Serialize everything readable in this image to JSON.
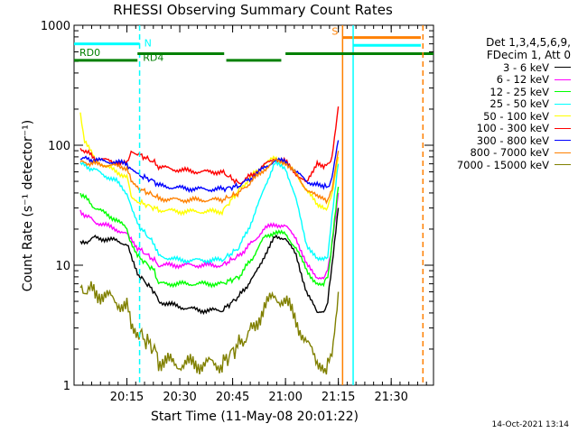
{
  "chart_data": {
    "type": "line",
    "title": "RHESSI Observing Summary Count Rates",
    "xlabel": "Start Time (11-May-08 20:01:22)",
    "ylabel": "Count Rate (s⁻¹ detector⁻¹)",
    "yscale": "log",
    "ylim": [
      1,
      1000
    ],
    "xlim_minutes": [
      20.0,
      21.7
    ],
    "x_tick_labels": [
      "20:15",
      "20:30",
      "20:45",
      "21:00",
      "21:15",
      "21:30"
    ],
    "y_tick_labels": [
      "1",
      "10",
      "100",
      "1000"
    ],
    "legend_header": [
      "Det 1,3,4,5,6,9,",
      "FDecim 1, Att 0"
    ],
    "legend_placement": "right",
    "timestamp": "14-Oct-2021 13:14",
    "series": [
      {
        "name": "3 - 6 keV",
        "color": "#000000",
        "x": [
          20.03,
          20.1,
          20.2,
          20.25,
          20.27,
          20.3,
          20.38,
          20.4,
          20.5,
          20.6,
          20.7,
          20.78,
          20.85,
          20.9,
          20.95,
          21.0,
          21.05,
          21.1,
          21.15,
          21.18,
          21.2,
          21.22,
          21.25
        ],
        "y": [
          15,
          17,
          16,
          15,
          12,
          8.5,
          6,
          5,
          4.5,
          4.2,
          4.2,
          5.5,
          8,
          12,
          17,
          17,
          12,
          6,
          4,
          4,
          5,
          10,
          30
        ]
      },
      {
        "name": "6 - 12 keV",
        "color": "#ff00ff",
        "x": [
          20.03,
          20.1,
          20.2,
          20.25,
          20.27,
          20.3,
          20.38,
          20.4,
          20.5,
          20.6,
          20.7,
          20.78,
          20.85,
          20.9,
          20.95,
          21.0,
          21.05,
          21.1,
          21.15,
          21.18,
          21.2,
          21.22,
          21.25
        ],
        "y": [
          28,
          23,
          20,
          18,
          17,
          14,
          11,
          10,
          10,
          10,
          10,
          12,
          16,
          20,
          22,
          21,
          17,
          10,
          8,
          8,
          9,
          15,
          40
        ]
      },
      {
        "name": "12 - 25 keV",
        "color": "#00ff00",
        "x": [
          20.03,
          20.1,
          20.2,
          20.25,
          20.27,
          20.3,
          20.38,
          20.4,
          20.5,
          20.6,
          20.7,
          20.78,
          20.85,
          20.9,
          20.95,
          21.0,
          21.05,
          21.1,
          21.15,
          21.18,
          21.2,
          21.22,
          21.25
        ],
        "y": [
          40,
          30,
          24,
          20,
          15,
          12,
          9,
          7,
          7,
          7,
          7,
          8,
          12,
          17,
          19,
          18,
          14,
          9,
          7,
          7,
          8,
          15,
          45
        ]
      },
      {
        "name": "25 - 50 keV",
        "color": "#00ffff",
        "x": [
          20.03,
          20.1,
          20.2,
          20.25,
          20.27,
          20.3,
          20.38,
          20.4,
          20.5,
          20.6,
          20.7,
          20.78,
          20.85,
          20.9,
          20.95,
          21.0,
          21.05,
          21.1,
          21.15,
          21.18,
          21.2,
          21.22,
          21.25
        ],
        "y": [
          70,
          62,
          50,
          40,
          30,
          22,
          15,
          12,
          11,
          11,
          11,
          14,
          25,
          45,
          70,
          65,
          35,
          15,
          11,
          11,
          12,
          25,
          70
        ]
      },
      {
        "name": "50 - 100 keV",
        "color": "#ffff00",
        "x": [
          20.03,
          20.05,
          20.1,
          20.2,
          20.25,
          20.27,
          20.3,
          20.38,
          20.4,
          20.5,
          20.6,
          20.7,
          20.78,
          20.85,
          20.9,
          20.95,
          21.0,
          21.05,
          21.1,
          21.15,
          21.18,
          21.2,
          21.22,
          21.25
        ],
        "y": [
          180,
          110,
          75,
          60,
          55,
          38,
          34,
          30,
          29,
          28,
          28,
          28,
          42,
          58,
          70,
          78,
          72,
          58,
          42,
          32,
          30,
          30,
          40,
          80
        ]
      },
      {
        "name": "100 - 300 keV",
        "color": "#ff0000",
        "x": [
          20.03,
          20.1,
          20.2,
          20.25,
          20.27,
          20.3,
          20.38,
          20.4,
          20.5,
          20.6,
          20.7,
          20.78,
          20.85,
          20.9,
          20.95,
          21.0,
          21.05,
          21.1,
          21.15,
          21.18,
          21.2,
          21.22,
          21.25
        ],
        "y": [
          95,
          78,
          72,
          70,
          90,
          85,
          72,
          66,
          62,
          60,
          60,
          48,
          58,
          68,
          78,
          73,
          58,
          48,
          73,
          68,
          68,
          80,
          210
        ]
      },
      {
        "name": "300 - 800 keV",
        "color": "#0000ff",
        "x": [
          20.03,
          20.1,
          20.2,
          20.25,
          20.27,
          20.3,
          20.38,
          20.4,
          20.5,
          20.6,
          20.7,
          20.78,
          20.85,
          20.9,
          20.95,
          21.0,
          21.05,
          21.1,
          21.15,
          21.18,
          21.2,
          21.22,
          21.25
        ],
        "y": [
          78,
          75,
          72,
          70,
          62,
          57,
          50,
          46,
          44,
          43,
          43,
          46,
          55,
          65,
          75,
          73,
          60,
          50,
          47,
          45,
          45,
          52,
          110
        ]
      },
      {
        "name": "800 - 7000 keV",
        "color": "#ff8000",
        "x": [
          20.03,
          20.1,
          20.2,
          20.25,
          20.27,
          20.3,
          20.38,
          20.4,
          20.5,
          20.6,
          20.7,
          20.78,
          20.85,
          20.9,
          20.95,
          21.0,
          21.05,
          21.1,
          21.15,
          21.18,
          21.2,
          21.22,
          21.25
        ],
        "y": [
          72,
          70,
          67,
          65,
          50,
          44,
          38,
          36,
          35,
          35,
          35,
          40,
          52,
          63,
          74,
          72,
          57,
          43,
          37,
          35,
          35,
          42,
          90
        ]
      },
      {
        "name": "7000 - 15000 keV",
        "color": "#808000",
        "x": [
          20.03,
          20.1,
          20.2,
          20.25,
          20.27,
          20.3,
          20.38,
          20.4,
          20.5,
          20.6,
          20.7,
          20.78,
          20.85,
          20.9,
          20.95,
          21.0,
          21.05,
          21.1,
          21.15,
          21.18,
          21.2,
          21.22,
          21.25
        ],
        "y": [
          6.5,
          6,
          5,
          4.5,
          3.5,
          2.8,
          2,
          1.6,
          1.5,
          1.5,
          1.5,
          2.2,
          3,
          4.5,
          5.5,
          5,
          3.5,
          2.2,
          1.6,
          1.4,
          1.4,
          2,
          6
        ]
      }
    ],
    "annotations": [
      {
        "text": "N",
        "color": "#00ffff",
        "bar_y": 700,
        "bar_x": [
          20.0,
          20.31
        ],
        "line_x": 20.31,
        "line_style": "dashed"
      },
      {
        "text": "RD0",
        "color": "#008000",
        "bar_y": 510,
        "bar_x": [
          20.0,
          20.3
        ]
      },
      {
        "text": "RD4",
        "color": "#008000",
        "bar_y": 580,
        "bar_x": [
          20.3,
          20.71
        ]
      },
      {
        "text": "S",
        "color": "#ff8000",
        "bar_y": 790,
        "bar_x": [
          21.27,
          21.64
        ],
        "line_x": 21.27,
        "line_style": "solid"
      },
      {
        "text": "",
        "color": "#00ffff",
        "bar_y": 680,
        "bar_x": [
          21.32,
          21.64
        ],
        "line_x": 21.32,
        "line_style": "solid"
      },
      {
        "text": "",
        "color": "#008000",
        "bar_y": 510,
        "bar_x": [
          20.72,
          20.98
        ]
      },
      {
        "text": "",
        "color": "#008000",
        "bar_y": 580,
        "bar_x": [
          21.0,
          21.7
        ]
      },
      {
        "text": "",
        "color": "#ff8000",
        "bar_y": 790,
        "bar_x": [
          21.65,
          21.65
        ],
        "line_x": 21.65,
        "line_style": "dashed"
      }
    ]
  }
}
